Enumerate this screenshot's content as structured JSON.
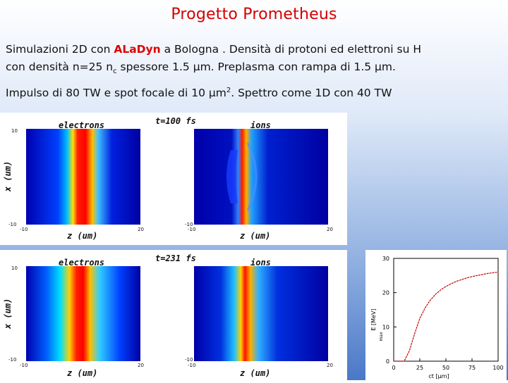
{
  "title": "Progetto Prometheus",
  "line1": {
    "pre": "Simulazioni  2D  con ",
    "code": "ALaDyn",
    "post": " a Bologna .  Densità di  protoni ed elettroni su H"
  },
  "line2": {
    "pre": "con densità n=25 n",
    "sub": "c",
    "post": "  spessore 1.5 μm. Preplasma con rampa di 1.5 μm."
  },
  "line3": {
    "pre": "Impulso di  80 TW  e spot focale di 10 μm",
    "sup": "2",
    "post": ".  Spettro come   1D  con 40 TW"
  },
  "panels": [
    {
      "time": "t=100  fs",
      "left": "electrons",
      "right": "ions",
      "xlabel": "z  (um)",
      "ylabel": "x  (um)",
      "ytop": "10",
      "ybot": "-10",
      "xl": "-10",
      "xr": "20"
    },
    {
      "time": "t=231  fs",
      "left": "electrons",
      "right": "ions",
      "xlabel": "z  (um)",
      "ylabel": "x  (um)",
      "ytop": "10",
      "ybot": "-10",
      "xl": "-10",
      "xr": "20"
    }
  ],
  "chart_data": {
    "type": "line",
    "x": [
      0,
      5,
      10,
      15,
      20,
      25,
      30,
      35,
      40,
      45,
      50,
      55,
      60,
      65,
      70,
      75,
      80,
      85,
      90,
      95,
      100
    ],
    "values": [
      0,
      0,
      0,
      3,
      8,
      12.5,
      15.5,
      17.8,
      19.5,
      20.8,
      21.8,
      22.6,
      23.3,
      23.8,
      24.3,
      24.7,
      25.0,
      25.3,
      25.6,
      25.8,
      26.0
    ],
    "xlabel": "ct [μm]",
    "ylabel": "E  [MeV]",
    "ylabel_sub": "max",
    "xlim": [
      0,
      100
    ],
    "ylim": [
      0,
      30
    ],
    "xticks": [
      "0",
      "25",
      "50",
      "75",
      "100"
    ],
    "yticks": [
      "0",
      "10",
      "20",
      "30"
    ],
    "color": "#c00000"
  }
}
